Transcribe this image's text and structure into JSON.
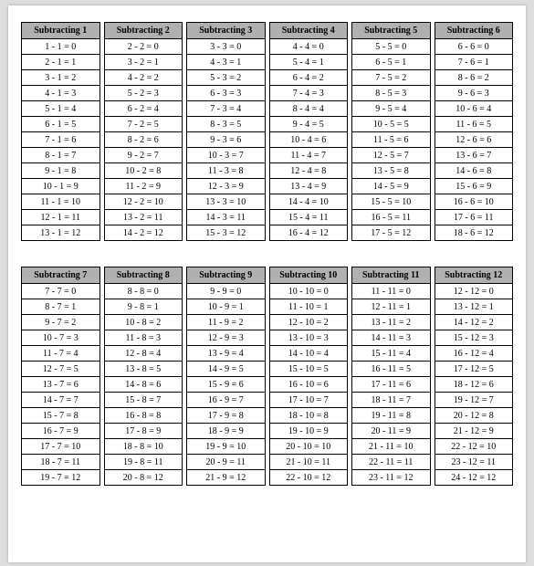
{
  "page_background": "#dddddd",
  "paper_background": "#ffffff",
  "header_background": "#b0b0b0",
  "border_color": "#000000",
  "font_family": "Times New Roman",
  "blocks": [
    {
      "tables": [
        {
          "header": "Subtracting 1",
          "start": 1,
          "sub": 1
        },
        {
          "header": "Subtracting 2",
          "start": 2,
          "sub": 2
        },
        {
          "header": "Subtracting 3",
          "start": 3,
          "sub": 3
        },
        {
          "header": "Subtracting 4",
          "start": 4,
          "sub": 4
        },
        {
          "header": "Subtracting 5",
          "start": 5,
          "sub": 5
        },
        {
          "header": "Subtracting 6",
          "start": 6,
          "sub": 6
        }
      ]
    },
    {
      "tables": [
        {
          "header": "Subtracting 7",
          "start": 7,
          "sub": 7
        },
        {
          "header": "Subtracting 8",
          "start": 8,
          "sub": 8
        },
        {
          "header": "Subtracting 9",
          "start": 9,
          "sub": 9
        },
        {
          "header": "Subtracting 10",
          "start": 10,
          "sub": 10
        },
        {
          "header": "Subtracting 11",
          "start": 11,
          "sub": 11
        },
        {
          "header": "Subtracting 12",
          "start": 12,
          "sub": 12
        }
      ]
    }
  ],
  "rows_per_table": 13
}
